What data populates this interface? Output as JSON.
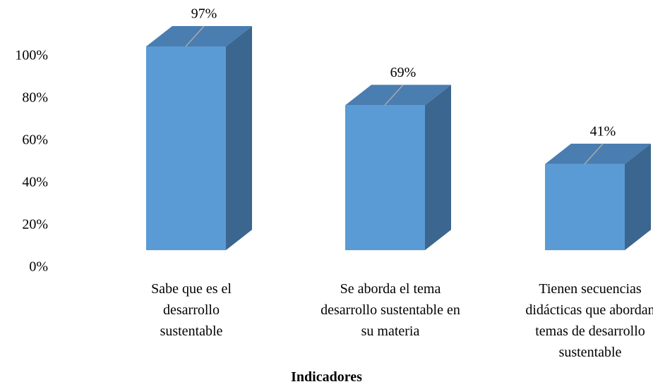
{
  "chart_data": {
    "type": "bar3d",
    "categories": [
      "Sabe que es el desarrollo sustentable",
      "Se aborda el tema desarrollo sustentable en su materia",
      "Tienen secuencias didácticas que abordan temas de desarrollo sustentable"
    ],
    "values": [
      97,
      69,
      41
    ],
    "value_labels": [
      "97%",
      "69%",
      "41%"
    ],
    "x_label": "Indicadores",
    "color": "#5b9bd5",
    "ylim": [
      0,
      100
    ],
    "yticks": [
      {
        "value": 0,
        "label": "0%"
      },
      {
        "value": 20,
        "label": "20%"
      },
      {
        "value": 40,
        "label": "40%"
      },
      {
        "value": 60,
        "label": "60%"
      },
      {
        "value": 80,
        "label": "80%"
      },
      {
        "value": 100,
        "label": "100%"
      }
    ]
  }
}
